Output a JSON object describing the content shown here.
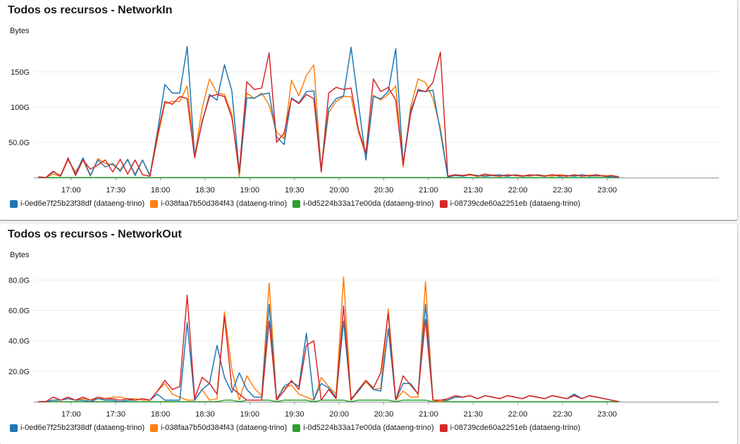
{
  "colors": {
    "s0": "#1f77b4",
    "s1": "#ff7f0e",
    "s2": "#2ca02c",
    "s3": "#d62728"
  },
  "legend": [
    {
      "label": "i-0ed6e7f25b23f38df (dataeng-trino)",
      "color": "#1f77b4"
    },
    {
      "label": "i-038faa7b50d384f43 (dataeng-trino)",
      "color": "#ff7f0e"
    },
    {
      "label": "i-0d5224b33a17e00da (dataeng-trino)",
      "color": "#2ca02c"
    },
    {
      "label": "i-08739cde60a2251eb (dataeng-trino)",
      "color": "#d62728"
    }
  ],
  "chart_data": [
    {
      "type": "line",
      "title": "Todos os recursos - NetworkIn",
      "ylabel": "Bytes",
      "xlabel": "",
      "x_tick_labels": [
        "17:00",
        "17:30",
        "18:00",
        "18:30",
        "19:00",
        "19:30",
        "20:00",
        "20:30",
        "21:00",
        "21:30",
        "22:00",
        "22:30",
        "23:00"
      ],
      "y_tick_labels": [
        "50.0G",
        "100G",
        "150G"
      ],
      "y_ticks": [
        50,
        100,
        150
      ],
      "ylim": [
        0,
        190
      ],
      "x_range_minutes": [
        -25,
        435
      ],
      "x_step_minutes": 5,
      "series": [
        {
          "name": "i-0ed6e7f25b23f38df (dataeng-trino)",
          "values": [
            1,
            0,
            8,
            3,
            27,
            5,
            28,
            3,
            25,
            15,
            20,
            9,
            26,
            3,
            25,
            3,
            65,
            132,
            120,
            120,
            186,
            30,
            78,
            118,
            110,
            160,
            123,
            6,
            113,
            113,
            118,
            120,
            58,
            47,
            113,
            106,
            122,
            123,
            12,
            98,
            112,
            116,
            185,
            105,
            25,
            115,
            112,
            122,
            183,
            20,
            95,
            123,
            122,
            124,
            65,
            1,
            3,
            2,
            4,
            3,
            2,
            3,
            4,
            2,
            4,
            2,
            3,
            4,
            2,
            4,
            2,
            3,
            2,
            4,
            2,
            3,
            2,
            1,
            1
          ]
        },
        {
          "name": "i-038faa7b50d384f43 (dataeng-trino)",
          "values": [
            1,
            0,
            5,
            2,
            25,
            8,
            25,
            2,
            27,
            20,
            18,
            11,
            25,
            5,
            25,
            2,
            55,
            105,
            108,
            108,
            130,
            30,
            98,
            140,
            120,
            118,
            90,
            1,
            120,
            112,
            120,
            103,
            65,
            55,
            138,
            116,
            145,
            160,
            10,
            92,
            108,
            115,
            115,
            65,
            30,
            117,
            110,
            118,
            130,
            15,
            100,
            140,
            135,
            112,
            70,
            2,
            4,
            3,
            5,
            2,
            3,
            4,
            3,
            2,
            4,
            3,
            2,
            4,
            3,
            2,
            4,
            3,
            2,
            4,
            3,
            2,
            3,
            1,
            1
          ]
        },
        {
          "name": "i-0d5224b33a17e00da (dataeng-trino)",
          "values": [
            0,
            0,
            0,
            0,
            0,
            0,
            0,
            0,
            0,
            0,
            0,
            0,
            0,
            0,
            0,
            0,
            0,
            0,
            0,
            0,
            0,
            0,
            0,
            0,
            0,
            0,
            0,
            0,
            0,
            0,
            0,
            0,
            0,
            0,
            0,
            0,
            0,
            0,
            0,
            0,
            0,
            0,
            0,
            0,
            0,
            0,
            0,
            0,
            0,
            0,
            0,
            0,
            0,
            0,
            0,
            0,
            0,
            0,
            0,
            0,
            0,
            0,
            0,
            0,
            0,
            0,
            0,
            0,
            0,
            0,
            0,
            0,
            0,
            0,
            0,
            0,
            0,
            0,
            0
          ]
        },
        {
          "name": "i-08739cde60a2251eb (dataeng-trino)",
          "values": [
            1,
            0,
            9,
            2,
            28,
            3,
            25,
            12,
            18,
            25,
            8,
            26,
            5,
            25,
            4,
            2,
            60,
            108,
            104,
            115,
            112,
            28,
            80,
            115,
            118,
            115,
            85,
            10,
            136,
            125,
            127,
            177,
            50,
            63,
            112,
            105,
            118,
            112,
            8,
            120,
            128,
            125,
            127,
            68,
            35,
            140,
            122,
            128,
            110,
            18,
            90,
            125,
            122,
            135,
            178,
            2,
            4,
            3,
            4,
            2,
            5,
            3,
            2,
            4,
            3,
            2,
            4,
            3,
            2,
            4,
            3,
            2,
            4,
            2,
            3,
            4,
            2,
            3,
            1
          ]
        }
      ]
    },
    {
      "type": "line",
      "title": "Todos os recursos - NetworkOut",
      "ylabel": "Bytes",
      "xlabel": "",
      "x_tick_labels": [
        "17:00",
        "17:30",
        "18:00",
        "18:30",
        "19:00",
        "19:30",
        "20:00",
        "20:30",
        "21:00",
        "21:30",
        "22:00",
        "22:30",
        "23:00"
      ],
      "y_tick_labels": [
        "20.0G",
        "40.0G",
        "60.0G",
        "80.0G"
      ],
      "y_ticks": [
        20,
        40,
        60,
        80
      ],
      "ylim": [
        0,
        88
      ],
      "x_range_minutes": [
        -25,
        435
      ],
      "x_step_minutes": 5,
      "series": [
        {
          "name": "i-0ed6e7f25b23f38df (dataeng-trino)",
          "values": [
            0,
            0,
            1,
            1,
            2,
            1,
            1,
            0,
            2,
            1,
            1,
            0,
            1,
            1,
            2,
            1,
            5,
            1,
            1,
            1,
            52,
            1,
            8,
            12,
            37,
            16,
            6,
            19,
            8,
            3,
            3,
            64,
            1,
            10,
            13,
            10,
            45,
            1,
            12,
            9,
            3,
            53,
            2,
            7,
            14,
            8,
            7,
            48,
            1,
            12,
            12,
            5,
            64,
            1,
            1,
            1,
            3,
            3,
            4,
            2,
            4,
            3,
            2,
            4,
            3,
            2,
            4,
            3,
            2,
            4,
            3,
            2,
            5,
            2,
            4,
            3,
            2,
            1,
            0
          ]
        },
        {
          "name": "i-038faa7b50d384f43 (dataeng-trino)",
          "values": [
            0,
            0,
            3,
            1,
            2,
            1,
            2,
            1,
            2,
            2,
            3,
            3,
            2,
            2,
            1,
            1,
            7,
            12,
            5,
            3,
            1,
            1,
            8,
            1,
            2,
            59,
            21,
            1,
            17,
            9,
            4,
            78,
            2,
            9,
            11,
            5,
            3,
            1,
            16,
            10,
            5,
            82,
            1,
            7,
            13,
            8,
            9,
            61,
            1,
            7,
            3,
            3,
            79,
            1,
            0,
            1,
            3,
            3,
            4,
            2,
            4,
            3,
            2,
            4,
            3,
            2,
            4,
            3,
            2,
            4,
            3,
            2,
            4,
            2,
            4,
            3,
            2,
            1,
            0
          ]
        },
        {
          "name": "i-0d5224b33a17e00da (dataeng-trino)",
          "values": [
            0,
            0,
            0,
            0,
            0,
            0,
            0,
            0,
            0,
            0,
            0,
            0,
            0,
            0,
            0,
            0,
            0,
            0,
            0,
            0,
            0,
            0,
            0,
            0,
            0,
            1,
            1,
            0,
            1,
            1,
            1,
            1,
            0,
            1,
            1,
            1,
            1,
            0,
            1,
            1,
            1,
            1,
            0,
            1,
            1,
            1,
            1,
            1,
            0,
            1,
            1,
            1,
            1,
            0,
            0,
            0,
            0,
            0,
            0,
            0,
            0,
            0,
            0,
            0,
            0,
            0,
            0,
            0,
            0,
            0,
            0,
            0,
            0,
            0,
            0,
            0,
            0,
            0,
            0
          ]
        },
        {
          "name": "i-08739cde60a2251eb (dataeng-trino)",
          "values": [
            0,
            0,
            3,
            1,
            3,
            1,
            3,
            1,
            3,
            2,
            2,
            1,
            2,
            1,
            2,
            1,
            7,
            14,
            8,
            10,
            70,
            2,
            16,
            12,
            5,
            56,
            9,
            5,
            1,
            1,
            1,
            53,
            1,
            7,
            14,
            8,
            37,
            40,
            1,
            8,
            2,
            63,
            1,
            8,
            14,
            9,
            19,
            58,
            1,
            17,
            11,
            5,
            54,
            1,
            1,
            2,
            4,
            3,
            4,
            2,
            4,
            3,
            2,
            4,
            3,
            2,
            4,
            3,
            2,
            4,
            3,
            2,
            4,
            2,
            4,
            3,
            2,
            1,
            0
          ]
        }
      ]
    }
  ]
}
